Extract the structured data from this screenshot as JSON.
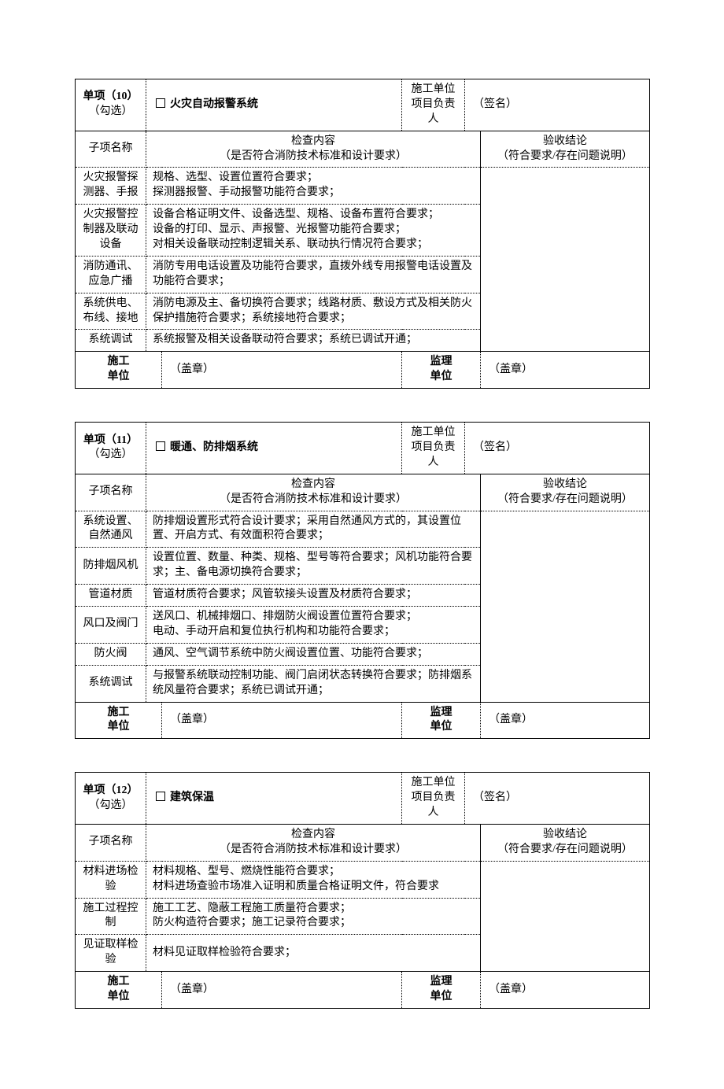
{
  "columns": {
    "subitem": "子项名称",
    "inspect_title": "检查内容",
    "inspect_sub": "（是否符合消防技术标准和设计要求）",
    "result_title": "验收结论",
    "result_sub": "（符合要求/存在问题说明）",
    "contractor_pm": "施工单位\n项目负责人",
    "signature": "（签名）",
    "contractor": "施工\n单位",
    "supervisor": "监理\n单位",
    "seal": "（盖章）"
  },
  "widths": {
    "col1": 90,
    "col2": 20,
    "col3": 305,
    "col4": 80,
    "col5": 20,
    "col6": 215
  },
  "sections": [
    {
      "item_no": "单项（10）",
      "item_hint": "（勾选）",
      "title": "火灾自动报警系统",
      "rows": [
        {
          "name": "火灾报警探测器、手报",
          "content": "规格、选型、设置位置符合要求；\n探测器报警、手动报警功能符合要求；"
        },
        {
          "name": "火灾报警控制器及联动设备",
          "content": "设备合格证明文件、设备选型、规格、设备布置符合要求；\n设备的打印、显示、声报警、光报警功能符合要求；\n对相关设备联动控制逻辑关系、联动执行情况符合要求；"
        },
        {
          "name": "消防通讯、应急广播",
          "content": "消防专用电话设置及功能符合要求，直拨外线专用报警电话设置及功能符合要求；"
        },
        {
          "name": "系统供电、布线、接地",
          "content": "消防电源及主、备切换符合要求；线路材质、敷设方式及相关防火保护措施符合要求；系统接地符合要求；"
        },
        {
          "name": "系统调试",
          "content": "系统报警及相关设备联动符合要求；系统已调试开通；"
        }
      ]
    },
    {
      "item_no": "单项（11）",
      "item_hint": "（勾选）",
      "title": "暖通、防排烟系统",
      "rows": [
        {
          "name": "系统设置、自然通风",
          "content": "防排烟设置形式符合设计要求；采用自然通风方式的，其设置位置、开启方式、有效面积符合要求；"
        },
        {
          "name": "防排烟风机",
          "content": "设置位置、数量、种类、规格、型号等符合要求；风机功能符合要求；主、备电源切换符合要求；"
        },
        {
          "name": "管道材质",
          "content": "管道材质符合要求；风管软接头设置及材质符合要求；"
        },
        {
          "name": "风口及阀门",
          "content": "送风口、机械排烟口、排烟防火阀设置位置符合要求；\n电动、手动开启和复位执行机构和功能符合要求；"
        },
        {
          "name": "防火阀",
          "content": "通风、空气调节系统中防火阀设置位置、功能符合要求；"
        },
        {
          "name": "系统调试",
          "content": "与报警系统联动控制功能、阀门启闭状态转换符合要求；防排烟系统风量符合要求；系统已调试开通；"
        }
      ]
    },
    {
      "item_no": "单项（12）",
      "item_hint": "（勾选）",
      "title": "建筑保温",
      "rows": [
        {
          "name": "材料进场检验",
          "content": "材料规格、型号、燃烧性能符合要求；\n材料进场查验市场准入证明和质量合格证明文件，符合要求"
        },
        {
          "name": "施工过程控制",
          "content": "施工工艺、隐蔽工程施工质量符合要求；\n防火构造符合要求；施工记录符合要求；"
        },
        {
          "name": "见证取样检验",
          "content": "材料见证取样检验符合要求；"
        }
      ]
    }
  ]
}
